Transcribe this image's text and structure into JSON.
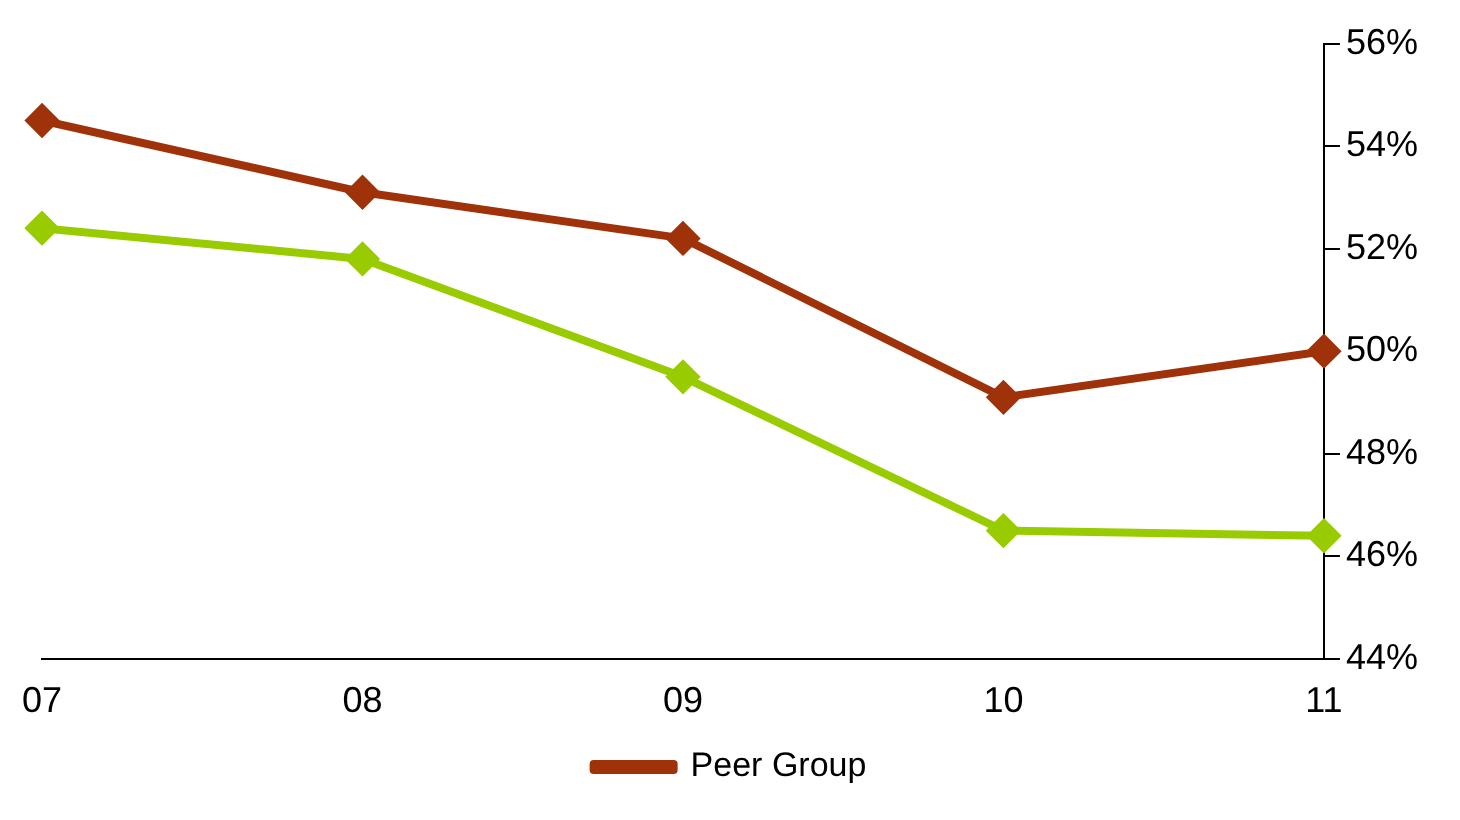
{
  "chart_data": {
    "type": "line",
    "categories": [
      "07",
      "08",
      "09",
      "10",
      "11"
    ],
    "series": [
      {
        "color": "#99cc00",
        "values": [
          52.4,
          51.8,
          49.5,
          46.5,
          46.4
        ]
      },
      {
        "name": "Peer Group",
        "color": "#a0320a",
        "values": [
          54.5,
          53.1,
          52.2,
          49.1,
          50.0
        ]
      }
    ],
    "ylim": [
      44,
      56
    ],
    "yticks": [
      {
        "value": 44,
        "label": "44%"
      },
      {
        "value": 46,
        "label": "46%"
      },
      {
        "value": 48,
        "label": "48%"
      },
      {
        "value": 50,
        "label": "50%"
      },
      {
        "value": 52,
        "label": "52%"
      },
      {
        "value": 54,
        "label": "54%"
      },
      {
        "value": 56,
        "label": "56%"
      }
    ],
    "grid": false,
    "legend": "bottom",
    "marker": "diamond",
    "line_style": "solid"
  }
}
